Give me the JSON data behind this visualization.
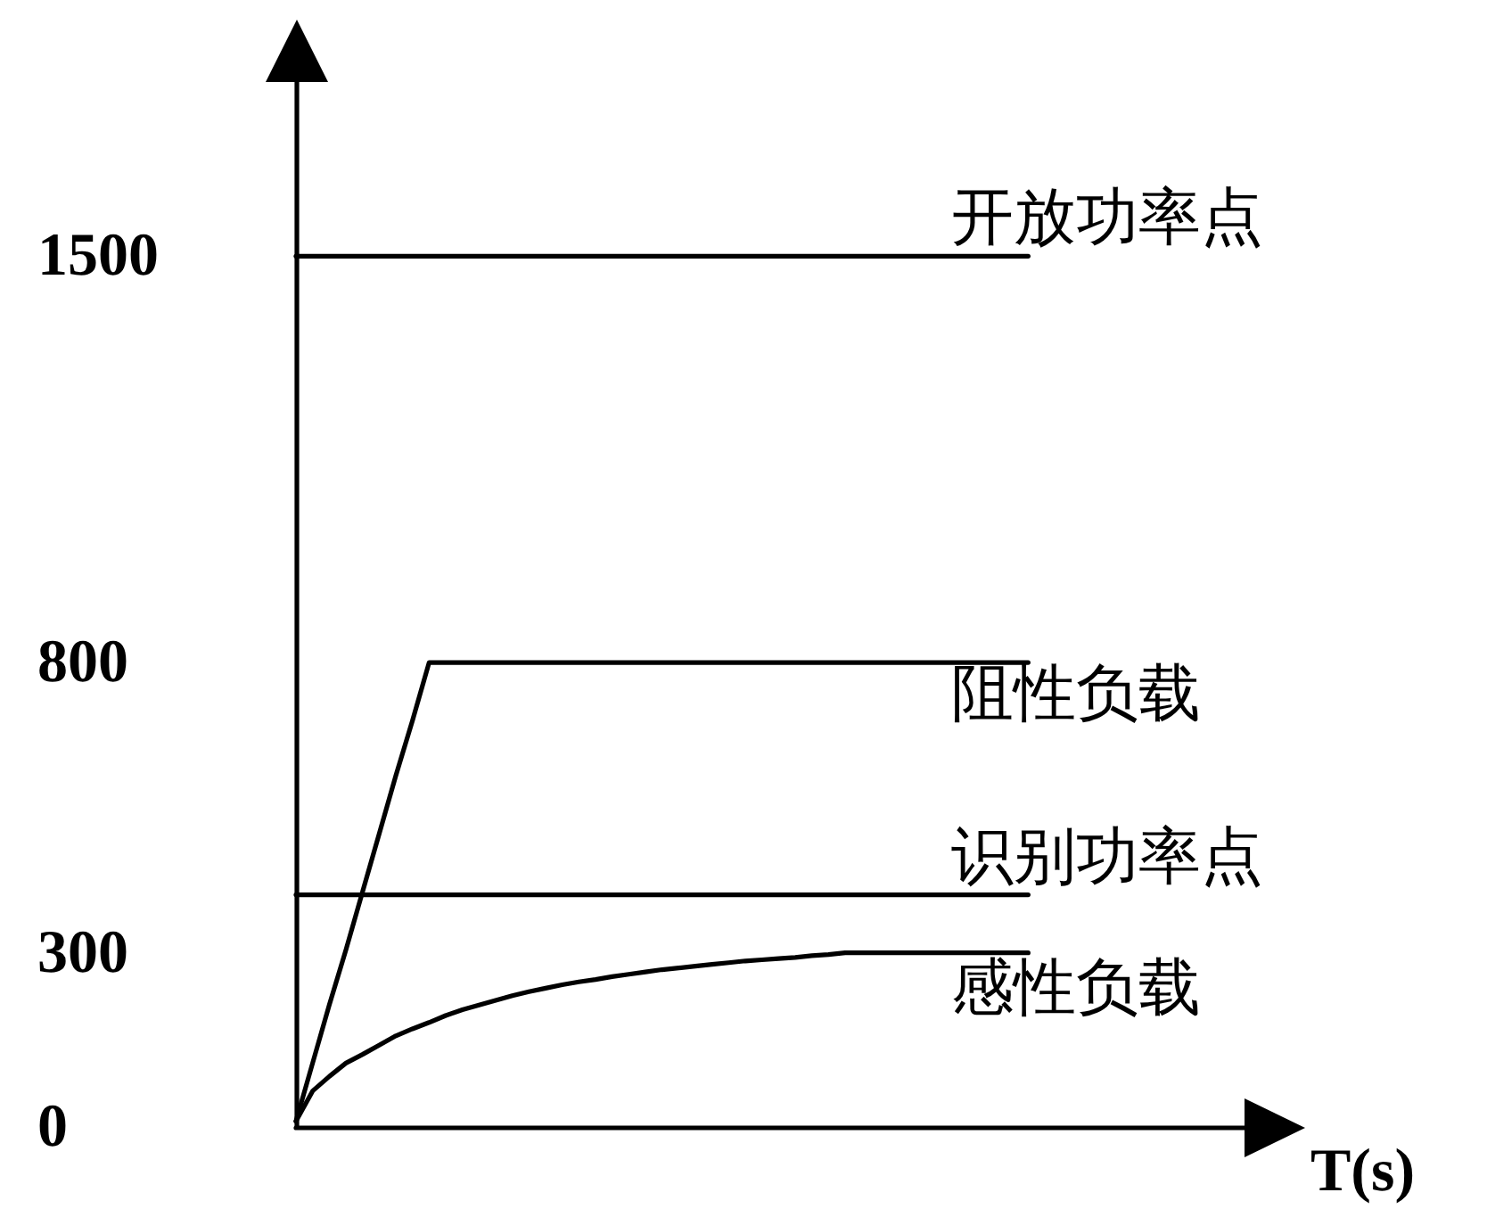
{
  "chart_data": {
    "type": "line",
    "xlabel": "T(s)",
    "categories": [
      null,
      null,
      null,
      null,
      null,
      null,
      null,
      null,
      null,
      null,
      null,
      null,
      null,
      null,
      null,
      null,
      null,
      null,
      null,
      null,
      null,
      null,
      null,
      null,
      null,
      null,
      null,
      null,
      null,
      null,
      null,
      null,
      null,
      null,
      null,
      null,
      null,
      null,
      null,
      null,
      null,
      null,
      null,
      null,
      null,
      null,
      null,
      null,
      null,
      null,
      null,
      null,
      null,
      null,
      null,
      null,
      null,
      null
    ],
    "series": [
      {
        "name": "开放功率点",
        "color": "#000000",
        "values": [
          1500,
          1500,
          1500,
          1500,
          1500,
          1500,
          1500,
          1500,
          1500,
          1500,
          1500,
          1500,
          1500,
          1500,
          1500,
          1500,
          1500,
          1500,
          1500,
          1500,
          1500,
          1500,
          1500,
          1500,
          1500,
          1500,
          1500,
          1500,
          1500,
          1500,
          1500,
          1500,
          1500,
          1500,
          1500,
          1500,
          1500,
          1500,
          1500,
          1500,
          1500,
          1500,
          1500,
          1500,
          1500,
          null,
          null,
          null,
          null,
          null,
          null,
          null,
          null,
          null,
          null,
          null,
          null,
          null
        ]
      },
      {
        "name": "阻性负载",
        "color": "#000000",
        "values": [
          10,
          110,
          210,
          305,
          405,
          505,
          605,
          700,
          800,
          800,
          800,
          800,
          800,
          800,
          800,
          800,
          800,
          800,
          800,
          800,
          800,
          800,
          800,
          800,
          800,
          800,
          800,
          800,
          800,
          800,
          800,
          800,
          800,
          800,
          800,
          800,
          800,
          800,
          800,
          800,
          800,
          800,
          800,
          800,
          800,
          null,
          null,
          null,
          null,
          null,
          null,
          null,
          null,
          null,
          null,
          null,
          null,
          null
        ]
      },
      {
        "name": "识别功率点",
        "color": "#000000",
        "values": [
          400,
          400,
          400,
          400,
          400,
          400,
          400,
          400,
          400,
          400,
          400,
          400,
          400,
          400,
          400,
          400,
          400,
          400,
          400,
          400,
          400,
          400,
          400,
          400,
          400,
          400,
          400,
          400,
          400,
          400,
          400,
          400,
          400,
          400,
          400,
          400,
          400,
          400,
          400,
          400,
          400,
          400,
          400,
          400,
          400,
          null,
          null,
          null,
          null,
          null,
          null,
          null,
          null,
          null,
          null,
          null,
          null,
          null
        ]
      },
      {
        "name": "感性负载",
        "color": "#000000",
        "values": [
          10,
          62,
          87,
          110,
          125,
          141,
          157,
          169,
          180,
          192,
          202,
          210,
          218,
          226,
          233,
          239,
          245,
          250,
          254,
          259,
          263,
          267,
          271,
          274,
          277,
          280,
          283,
          286,
          288,
          290,
          292,
          295,
          297,
          300,
          300,
          300,
          300,
          300,
          300,
          300,
          300,
          300,
          300,
          300,
          300,
          null,
          null,
          null,
          null,
          null,
          null,
          null,
          null,
          null,
          null,
          null,
          null,
          null
        ]
      }
    ],
    "ylim": [
      0,
      1800
    ],
    "yticks": [
      0,
      300,
      800,
      1500
    ],
    "tick_labels": "y",
    "line_style": "solid"
  }
}
